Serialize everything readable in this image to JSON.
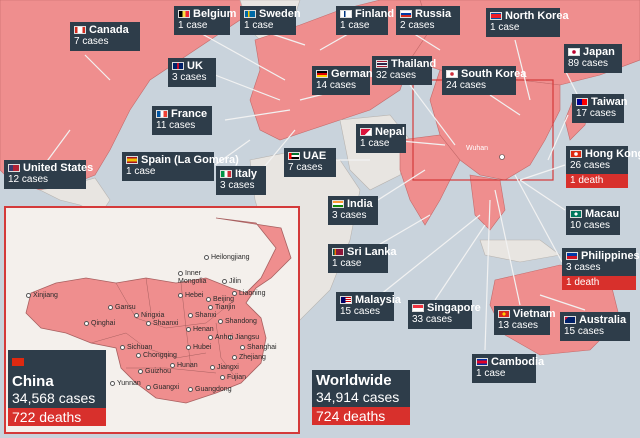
{
  "colors": {
    "sea": "#c9d3dc",
    "land": "#e8e5e1",
    "affected": "#ef8e8e",
    "label_bg": "#2e3d4a",
    "deaths_bg": "#d8302c"
  },
  "countries": {
    "canada": {
      "name": "Canada",
      "cases": "7 cases",
      "flag": "canada-flag-icon"
    },
    "belgium": {
      "name": "Belgium",
      "cases": "1 case",
      "flag": "belgium-flag-icon"
    },
    "sweden": {
      "name": "Sweden",
      "cases": "1 case",
      "flag": "sweden-flag-icon"
    },
    "finland": {
      "name": "Finland",
      "cases": "1 case",
      "flag": "finland-flag-icon"
    },
    "russia": {
      "name": "Russia",
      "cases": "2 cases",
      "flag": "russia-flag-icon"
    },
    "north_korea": {
      "name": "North Korea",
      "cases": "1 case",
      "flag": "north-korea-flag-icon"
    },
    "japan": {
      "name": "Japan",
      "cases": "89 cases",
      "flag": "japan-flag-icon"
    },
    "uk": {
      "name": "UK",
      "cases": "3 cases",
      "flag": "uk-flag-icon"
    },
    "germany": {
      "name": "Germany",
      "cases": "14 cases",
      "flag": "germany-flag-icon"
    },
    "thailand": {
      "name": "Thailand",
      "cases": "32 cases",
      "flag": "thailand-flag-icon"
    },
    "south_korea": {
      "name": "South Korea",
      "cases": "24 cases",
      "flag": "south-korea-flag-icon"
    },
    "taiwan": {
      "name": "Taiwan",
      "cases": "17 cases",
      "flag": "taiwan-flag-icon"
    },
    "france": {
      "name": "France",
      "cases": "11 cases",
      "flag": "france-flag-icon"
    },
    "nepal": {
      "name": "Nepal",
      "cases": "1 case",
      "flag": "nepal-flag-icon"
    },
    "hong_kong": {
      "name": "Hong Kong",
      "cases": "26 cases",
      "deaths": "1 death",
      "flag": "hong-kong-flag-icon"
    },
    "united_states": {
      "name": "United States",
      "cases": "12 cases",
      "flag": "us-flag-icon"
    },
    "spain": {
      "name": "Spain (La Gomera)",
      "cases": "1 case",
      "flag": "spain-flag-icon"
    },
    "italy": {
      "name": "Italy",
      "cases": "3 cases",
      "flag": "italy-flag-icon"
    },
    "uae": {
      "name": "UAE",
      "cases": "7 cases",
      "flag": "uae-flag-icon"
    },
    "macau": {
      "name": "Macau",
      "cases": "10 cases",
      "flag": "macau-flag-icon"
    },
    "india": {
      "name": "India",
      "cases": "3 cases",
      "flag": "india-flag-icon"
    },
    "sri_lanka": {
      "name": "Sri Lanka",
      "cases": "1 case",
      "flag": "sri-lanka-flag-icon"
    },
    "philippines": {
      "name": "Philippines",
      "cases": "3 cases",
      "deaths": "1 death",
      "flag": "philippines-flag-icon"
    },
    "malaysia": {
      "name": "Malaysia",
      "cases": "15 cases",
      "flag": "malaysia-flag-icon"
    },
    "singapore": {
      "name": "Singapore",
      "cases": "33 cases",
      "flag": "singapore-flag-icon"
    },
    "vietnam": {
      "name": "Vietnam",
      "cases": "13 cases",
      "flag": "vietnam-flag-icon"
    },
    "australia": {
      "name": "Australia",
      "cases": "15 cases",
      "flag": "australia-flag-icon"
    },
    "cambodia": {
      "name": "Cambodia",
      "cases": "1 case",
      "flag": "cambodia-flag-icon"
    }
  },
  "china": {
    "name": "China",
    "cases": "34,568 cases",
    "deaths": "722 deaths",
    "flag": "china-flag-icon"
  },
  "worldwide": {
    "name": "Worldwide",
    "cases": "34,914 cases",
    "deaths": "724 deaths"
  },
  "map_labels": {
    "wuhan": "Wuhan"
  },
  "china_provinces": [
    "Heilongjiang",
    "Jilin",
    "Liaoning",
    "Inner Mongolia",
    "Xinjiang",
    "Gansu",
    "Hebei",
    "Beijing",
    "Tianjin",
    "Ningxia",
    "Shanxi",
    "Shandong",
    "Qinghai",
    "Shaanxi",
    "Henan",
    "Jiangsu",
    "Anhui",
    "Shanghai",
    "Sichuan",
    "Chongqing",
    "Hubei",
    "Zhejiang",
    "Hunan",
    "Jiangxi",
    "Guizhou",
    "Fujian",
    "Yunnan",
    "Guangxi",
    "Guangdong"
  ],
  "china_province_display": {
    "inner_mongolia": "Inner\nMongolia"
  }
}
